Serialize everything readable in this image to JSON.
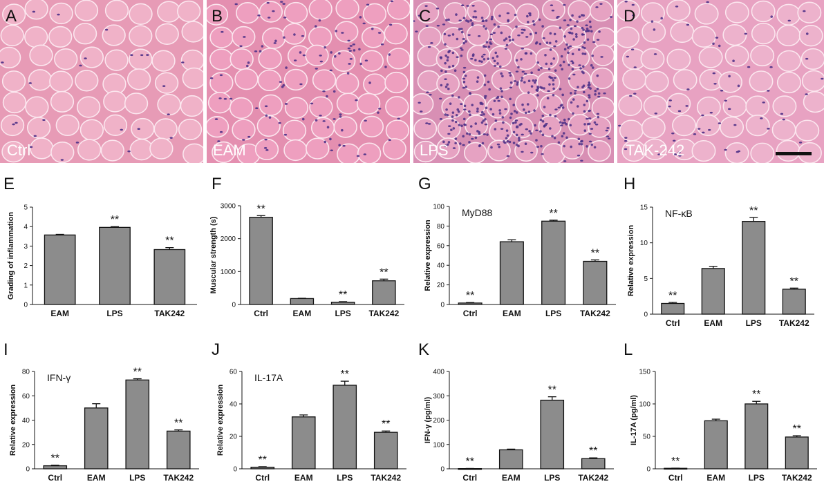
{
  "micrographs": [
    {
      "letter": "A",
      "label": "Ctrl"
    },
    {
      "letter": "B",
      "label": "EAM"
    },
    {
      "letter": "C",
      "label": "LPS"
    },
    {
      "letter": "D",
      "label": "TAK-242"
    }
  ],
  "chart_data": [
    {
      "id": "E",
      "type": "bar",
      "title": "",
      "ylabel": "Grading of inflammation",
      "ylim": [
        0,
        5
      ],
      "yticks": [
        0,
        1,
        2,
        3,
        4,
        5
      ],
      "categories": [
        "EAM",
        "LPS",
        "TAK242"
      ],
      "values": [
        3.57,
        3.96,
        2.82
      ],
      "errors": [
        0.03,
        0.04,
        0.1
      ],
      "significance": [
        "",
        "**",
        "**"
      ]
    },
    {
      "id": "F",
      "type": "bar",
      "title": "",
      "ylabel": "Muscular strength (s)",
      "ylim": [
        0,
        3000
      ],
      "yticks": [
        0,
        1000,
        2000,
        3000
      ],
      "categories": [
        "Ctrl",
        "EAM",
        "LPS",
        "TAK242"
      ],
      "values": [
        2650,
        180,
        70,
        720
      ],
      "errors": [
        50,
        10,
        15,
        50
      ],
      "significance": [
        "**",
        "",
        "**",
        "**"
      ]
    },
    {
      "id": "G",
      "type": "bar",
      "title": "MyD88",
      "ylabel": "Relative expression",
      "ylim": [
        0,
        100
      ],
      "yticks": [
        0,
        20,
        40,
        60,
        80,
        100
      ],
      "categories": [
        "Ctrl",
        "EAM",
        "LPS",
        "TAK242"
      ],
      "values": [
        1.5,
        64,
        85,
        44
      ],
      "errors": [
        0.5,
        2,
        1,
        1.5
      ],
      "significance": [
        "**",
        "",
        "**",
        "**"
      ]
    },
    {
      "id": "H",
      "type": "bar",
      "title": "NF-κB",
      "ylabel": "Relative expression",
      "ylim": [
        0,
        15
      ],
      "yticks": [
        0,
        5,
        10,
        15
      ],
      "categories": [
        "Ctrl",
        "EAM",
        "LPS",
        "TAK242"
      ],
      "values": [
        1.5,
        6.4,
        13,
        3.5
      ],
      "errors": [
        0.15,
        0.3,
        0.55,
        0.15
      ],
      "significance": [
        "**",
        "",
        "**",
        "**"
      ]
    },
    {
      "id": "I",
      "type": "bar",
      "title": "IFN-γ",
      "ylabel": "Relative expression",
      "ylim": [
        0,
        80
      ],
      "yticks": [
        0,
        20,
        40,
        60,
        80
      ],
      "categories": [
        "Ctrl",
        "EAM",
        "LPS",
        "TAK242"
      ],
      "values": [
        2.5,
        50,
        73,
        31
      ],
      "errors": [
        0.5,
        3.5,
        1,
        1
      ],
      "significance": [
        "**",
        "",
        "**",
        "**"
      ]
    },
    {
      "id": "J",
      "type": "bar",
      "title": "IL-17A",
      "ylabel": "Relative expression",
      "ylim": [
        0,
        60
      ],
      "yticks": [
        0,
        20,
        40,
        60
      ],
      "categories": [
        "Ctrl",
        "EAM",
        "LPS",
        "TAK242"
      ],
      "values": [
        1,
        32,
        51.5,
        22.5
      ],
      "errors": [
        0.3,
        1.2,
        2.5,
        0.8
      ],
      "significance": [
        "**",
        "",
        "**",
        "**"
      ]
    },
    {
      "id": "K",
      "type": "bar",
      "title": "",
      "ylabel": "IFN-γ (pg/ml)",
      "ylim": [
        0,
        400
      ],
      "yticks": [
        0,
        100,
        200,
        300,
        400
      ],
      "categories": [
        "Ctrl",
        "EAM",
        "LPS",
        "TAK242"
      ],
      "values": [
        1,
        78,
        282,
        42
      ],
      "errors": [
        0.5,
        3,
        14,
        3
      ],
      "significance": [
        "**",
        "",
        "**",
        "**"
      ]
    },
    {
      "id": "L",
      "type": "bar",
      "title": "",
      "ylabel": "IL-17A (pg/ml)",
      "ylim": [
        0,
        150
      ],
      "yticks": [
        0,
        50,
        100,
        150
      ],
      "categories": [
        "Ctrl",
        "EAM",
        "LPS",
        "TAK242"
      ],
      "values": [
        0.8,
        74,
        100,
        49
      ],
      "errors": [
        0.2,
        2.5,
        4,
        2
      ],
      "significance": [
        "**",
        "",
        "**",
        "**"
      ]
    }
  ]
}
